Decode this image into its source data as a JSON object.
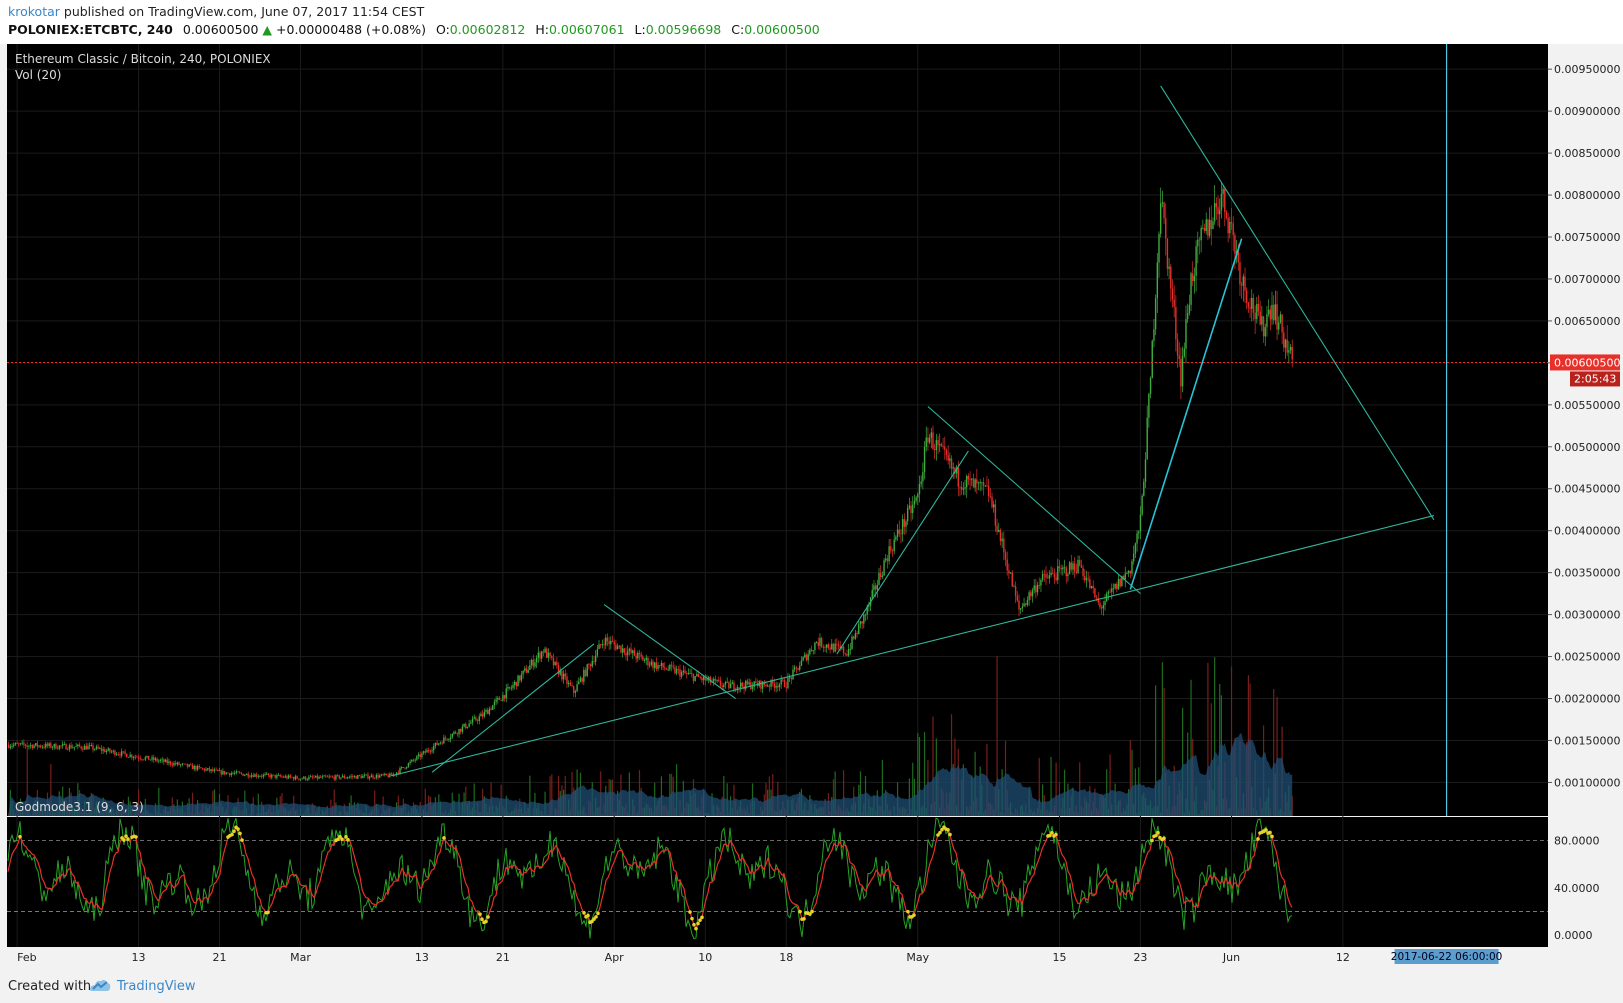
{
  "header": {
    "author": "krokotar",
    "published_text": " published on TradingView.com, June 07, 2017 11:54 CEST",
    "symbol": "POLONIEX:ETCBTC, 240",
    "last": "0.00600500",
    "change_arrow": "▲",
    "change": "+0.00000488 (+0.08%)",
    "open_label": "O:",
    "open": "0.00602812",
    "high_label": "H:",
    "high": "0.00607061",
    "low_label": "L:",
    "low": "0.00596698",
    "close_label": "C:",
    "close": "0.00600500"
  },
  "price_pane": {
    "title": "Ethereum Classic / Bitcoin, 240, POLONIEX",
    "volume_label": "Vol (20)",
    "current_price_label": "0.00600500",
    "countdown_label": "2:05:43"
  },
  "indicator_pane": {
    "title": "Godmode3.1 (9, 6, 3)",
    "y_ticks": [
      "80.0000",
      "40.0000",
      "0.0000"
    ]
  },
  "x_axis": {
    "labels": [
      "Feb",
      "13",
      "21",
      "Mar",
      "13",
      "21",
      "Apr",
      "10",
      "18",
      "May",
      "15",
      "23",
      "Jun",
      "12"
    ],
    "crosshair_label": "2017-06-22 06:00:00"
  },
  "footer": {
    "created_with": "Created with",
    "brand": "TradingView"
  },
  "colors": {
    "up": "#3fae3f",
    "down": "#e8302a",
    "trendline": "#2fb59a",
    "trendline_bright": "#29c3d6",
    "price_line": "#e8302a",
    "volume_ma": "#1f4f74",
    "osc_fast": "#26a426",
    "osc_slow": "#e8302a",
    "osc_marker": "#e5d52a"
  },
  "chart_data": [
    {
      "type": "candlestick",
      "title": "Ethereum Classic / Bitcoin, 240, POLONIEX",
      "x_start": "2017-01-31",
      "x_end": "2017-06-07",
      "ylim": [
        0.0006,
        0.0098
      ],
      "y_ticks": [
        "0.00100000",
        "0.00150000",
        "0.00200000",
        "0.00250000",
        "0.00300000",
        "0.00350000",
        "0.00400000",
        "0.00450000",
        "0.00500000",
        "0.00550000",
        "0.00600000",
        "0.00650000",
        "0.00700000",
        "0.00750000",
        "0.00800000",
        "0.00850000",
        "0.00900000",
        "0.00950000"
      ],
      "current_price": 0.006005,
      "key_points": [
        {
          "date": "2017-01-31",
          "close": 0.00145
        },
        {
          "date": "2017-02-08",
          "close": 0.00142
        },
        {
          "date": "2017-02-21",
          "close": 0.00112
        },
        {
          "date": "2017-03-01",
          "close": 0.00105
        },
        {
          "date": "2017-03-10",
          "close": 0.00108
        },
        {
          "date": "2017-03-15",
          "close": 0.0015
        },
        {
          "date": "2017-03-19",
          "close": 0.0018
        },
        {
          "date": "2017-03-22",
          "close": 0.00215
        },
        {
          "date": "2017-03-25",
          "close": 0.00258
        },
        {
          "date": "2017-03-28",
          "close": 0.00208
        },
        {
          "date": "2017-03-31",
          "close": 0.0027
        },
        {
          "date": "2017-04-05",
          "close": 0.0024
        },
        {
          "date": "2017-04-12",
          "close": 0.00215
        },
        {
          "date": "2017-04-18",
          "close": 0.00218
        },
        {
          "date": "2017-04-21",
          "close": 0.00268
        },
        {
          "date": "2017-04-24",
          "close": 0.00255
        },
        {
          "date": "2017-04-26",
          "close": 0.00305
        },
        {
          "date": "2017-04-28",
          "close": 0.00372
        },
        {
          "date": "2017-05-01",
          "close": 0.0044
        },
        {
          "date": "2017-05-02",
          "close": 0.00515
        },
        {
          "date": "2017-05-05",
          "close": 0.00462
        },
        {
          "date": "2017-05-08",
          "close": 0.00445
        },
        {
          "date": "2017-05-10",
          "close": 0.00352
        },
        {
          "date": "2017-05-11",
          "close": 0.00305
        },
        {
          "date": "2017-05-13",
          "close": 0.0034
        },
        {
          "date": "2017-05-17",
          "close": 0.0036
        },
        {
          "date": "2017-05-19",
          "close": 0.00308
        },
        {
          "date": "2017-05-22",
          "close": 0.00355
        },
        {
          "date": "2017-05-23",
          "close": 0.0041
        },
        {
          "date": "2017-05-24",
          "close": 0.0058
        },
        {
          "date": "2017-05-25",
          "close": 0.008
        },
        {
          "date": "2017-05-26",
          "close": 0.0069
        },
        {
          "date": "2017-05-27",
          "close": 0.00585
        },
        {
          "date": "2017-05-28",
          "close": 0.007
        },
        {
          "date": "2017-05-29",
          "close": 0.00745
        },
        {
          "date": "2017-05-31",
          "close": 0.008
        },
        {
          "date": "2017-06-01",
          "close": 0.0076
        },
        {
          "date": "2017-06-02",
          "close": 0.007
        },
        {
          "date": "2017-06-04",
          "close": 0.0064
        },
        {
          "date": "2017-06-05",
          "close": 0.00672
        },
        {
          "date": "2017-06-07",
          "close": 0.006005
        }
      ],
      "trendlines": [
        {
          "from": [
            "2017-03-10",
            0.00108
          ],
          "to": [
            "2017-06-21",
            0.00418
          ]
        },
        {
          "from": [
            "2017-03-14",
            0.00112
          ],
          "to": [
            "2017-03-30",
            0.00265
          ]
        },
        {
          "from": [
            "2017-03-31",
            0.00312
          ],
          "to": [
            "2017-04-13",
            0.002
          ]
        },
        {
          "from": [
            "2017-04-23",
            0.00253
          ],
          "to": [
            "2017-05-06",
            0.00495
          ]
        },
        {
          "from": [
            "2017-05-02",
            0.00548
          ],
          "to": [
            "2017-05-23",
            0.00325
          ]
        },
        {
          "from": [
            "2017-05-22",
            0.0033
          ],
          "to": [
            "2017-06-02",
            0.00748
          ]
        },
        {
          "from": [
            "2017-05-25",
            0.0093
          ],
          "to": [
            "2017-06-21",
            0.00413
          ]
        }
      ],
      "vertical_marker": "2017-06-22 06:00:00"
    },
    {
      "type": "bar",
      "title": "Vol (20)",
      "note": "volume histogram with moving average area"
    },
    {
      "type": "line",
      "title": "Godmode3.1 (9, 6, 3)",
      "ylim": [
        -10,
        100
      ],
      "y_ticks": [
        80,
        40,
        0
      ],
      "reference_levels": [
        80,
        20
      ],
      "series": [
        {
          "name": "fast"
        },
        {
          "name": "slow"
        }
      ]
    }
  ]
}
